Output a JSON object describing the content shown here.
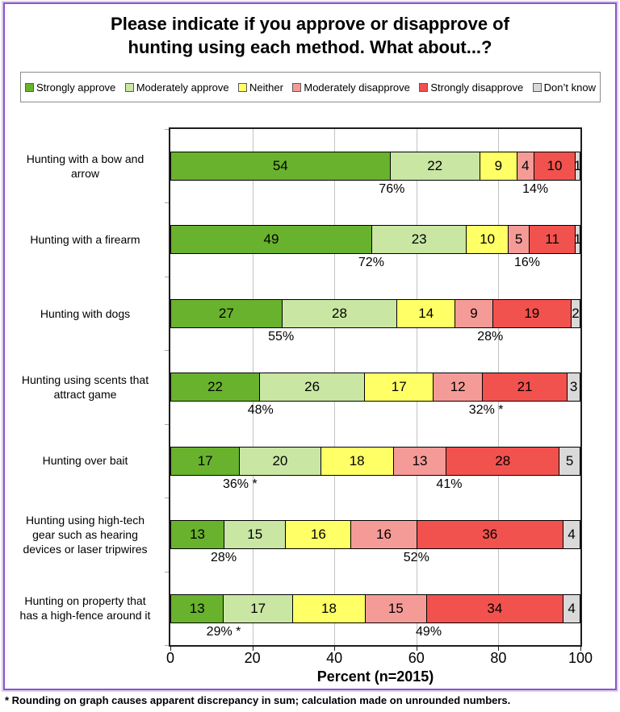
{
  "title": {
    "line1": "Please indicate if you approve or disapprove of",
    "line2": "hunting using each method. What about...?"
  },
  "footnote": "* Rounding on graph causes apparent discrepancy in sum; calculation made on unrounded numbers.",
  "colors": {
    "frame_border": "#8c54c9",
    "frame_halo": "#ddd0f0",
    "plot_border": "#1d1d1d",
    "gridline": "#c3c3c3",
    "legend_border": "#8c8c8c"
  },
  "chart_data": {
    "type": "bar",
    "orientation": "horizontal",
    "stacked": true,
    "grid": "vertical",
    "legend_position": "top",
    "title": "Please indicate if you approve or disapprove of hunting using each method. What about...?",
    "xlabel": "Percent (n=2015)",
    "ylabel": "",
    "xlim": [
      0,
      100
    ],
    "x_ticks": [
      0,
      20,
      40,
      60,
      80,
      100
    ],
    "series": [
      {
        "key": "strongly-approve",
        "name": "Strongly approve",
        "color": "#69b22d"
      },
      {
        "key": "moderately-approve",
        "name": "Moderately approve",
        "color": "#c9e6a3"
      },
      {
        "key": "neither",
        "name": "Neither",
        "color": "#ffff66"
      },
      {
        "key": "moderately-disapprove",
        "name": "Moderately disapprove",
        "color": "#f59b97"
      },
      {
        "key": "strongly-disapprove",
        "name": "Strongly disapprove",
        "color": "#f2524e"
      },
      {
        "key": "dont-know",
        "name": "Don’t know",
        "color": "#d9d9d9"
      }
    ],
    "rows": [
      {
        "category": "Hunting with a bow and\narrow",
        "values": [
          54,
          22,
          9,
          4,
          10,
          1
        ],
        "approve_label": "76%",
        "disapprove_label": "14%"
      },
      {
        "category": "Hunting with a firearm",
        "values": [
          49,
          23,
          10,
          5,
          11,
          1
        ],
        "approve_label": "72%",
        "disapprove_label": "16%"
      },
      {
        "category": "Hunting with dogs",
        "values": [
          27,
          28,
          14,
          9,
          19,
          2
        ],
        "approve_label": "55%",
        "disapprove_label": "28%"
      },
      {
        "category": "Hunting using scents that\nattract game",
        "values": [
          22,
          26,
          17,
          12,
          21,
          3
        ],
        "approve_label": "48%",
        "disapprove_label": "32% *"
      },
      {
        "category": "Hunting over bait",
        "values": [
          17,
          20,
          18,
          13,
          28,
          5
        ],
        "approve_label": "36% *",
        "disapprove_label": "41%"
      },
      {
        "category": "Hunting using high-tech\ngear such as hearing\ndevices or laser tripwires",
        "values": [
          13,
          15,
          16,
          16,
          36,
          4
        ],
        "approve_label": "28%",
        "disapprove_label": "52%"
      },
      {
        "category": "Hunting on property that\nhas a high-fence around it",
        "values": [
          13,
          17,
          18,
          15,
          34,
          4
        ],
        "approve_label": "29% *",
        "disapprove_label": "49%"
      }
    ]
  }
}
